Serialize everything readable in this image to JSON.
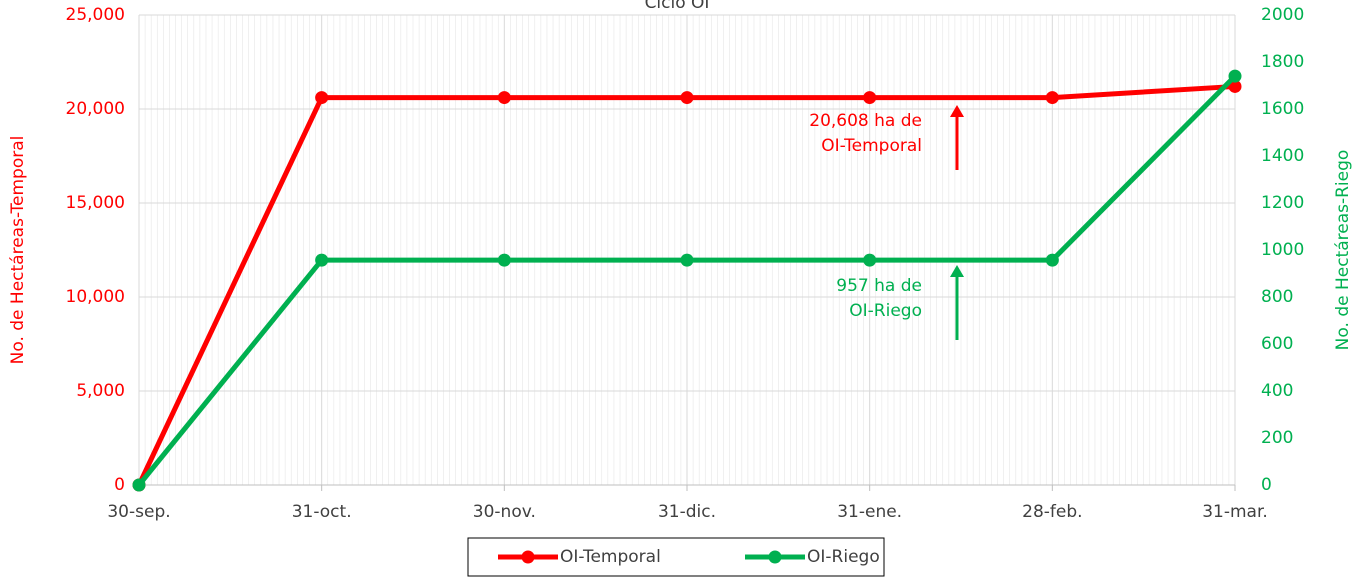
{
  "chart_data": {
    "type": "line",
    "title": "Ciclo OI",
    "categories": [
      "30-sep.",
      "31-oct.",
      "30-nov.",
      "31-dic.",
      "31-ene.",
      "28-feb.",
      "31-mar."
    ],
    "series": [
      {
        "name": "OI-Temporal",
        "color": "#ff0000",
        "values": [
          0,
          20608,
          20608,
          20608,
          20608,
          20608,
          21200
        ]
      },
      {
        "name": "OI-Riego",
        "color": "#00b050",
        "axis": "y2",
        "values": [
          0,
          957,
          957,
          957,
          957,
          957,
          1740
        ]
      }
    ],
    "ylabel": "No. de Hectáreas-Temporal",
    "y2label": "No. de Hectáreas-Riego",
    "ylim": [
      0,
      25000
    ],
    "yticks": [
      0,
      {
        "value": 5000,
        "label": "5,000"
      },
      {
        "value": 10000,
        "label": "10,000"
      },
      {
        "value": 15000,
        "label": "15,000"
      },
      {
        "value": 20000,
        "label": "20,000"
      },
      {
        "value": 25000,
        "label": "25,000"
      }
    ],
    "y2lim": [
      0,
      2000
    ],
    "y2ticks": [
      0,
      200,
      400,
      600,
      800,
      1000,
      1200,
      1400,
      1600,
      1800,
      2000
    ],
    "annotations": [
      {
        "lines": [
          "20,608 ha de",
          "OI-Temporal"
        ],
        "color": "#ff0000"
      },
      {
        "lines": [
          "957 ha de",
          "OI-Riego"
        ],
        "color": "#00b050"
      }
    ],
    "grid": true,
    "legend": "bottom"
  }
}
